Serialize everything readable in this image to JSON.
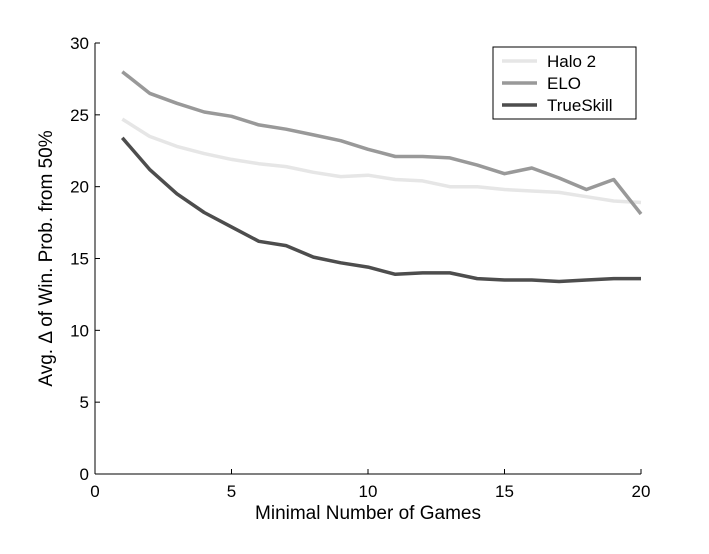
{
  "chart_data": {
    "type": "line",
    "title": "",
    "xlabel": "Minimal Number of Games",
    "ylabel": "Avg. Δ of Win. Prob. from 50%",
    "xlim": [
      0,
      20
    ],
    "ylim": [
      0,
      30
    ],
    "xticks": [
      0,
      5,
      10,
      15,
      20
    ],
    "yticks": [
      0,
      5,
      10,
      15,
      20,
      25,
      30
    ],
    "grid": false,
    "legend_position": "top-right",
    "x": [
      1,
      2,
      3,
      4,
      5,
      6,
      7,
      8,
      9,
      10,
      11,
      12,
      13,
      14,
      15,
      16,
      17,
      18,
      19,
      20
    ],
    "series": [
      {
        "name": "Halo 2",
        "color": "#e6e6e6",
        "values": [
          24.7,
          23.5,
          22.8,
          22.3,
          21.9,
          21.6,
          21.4,
          21.0,
          20.7,
          20.8,
          20.5,
          20.4,
          20.0,
          20.0,
          19.8,
          19.7,
          19.6,
          19.3,
          19.0,
          18.9
        ]
      },
      {
        "name": "ELO",
        "color": "#999999",
        "values": [
          28.0,
          26.5,
          25.8,
          25.2,
          24.9,
          24.3,
          24.0,
          23.6,
          23.2,
          22.6,
          22.1,
          22.1,
          22.0,
          21.5,
          20.9,
          21.3,
          20.6,
          19.8,
          20.5,
          18.1
        ]
      },
      {
        "name": "TrueSkill",
        "color": "#4d4d4d",
        "values": [
          23.4,
          21.2,
          19.5,
          18.2,
          17.2,
          16.2,
          15.9,
          15.1,
          14.7,
          14.4,
          13.9,
          14.0,
          14.0,
          13.6,
          13.5,
          13.5,
          13.4,
          13.5,
          13.6,
          13.6
        ]
      }
    ]
  }
}
